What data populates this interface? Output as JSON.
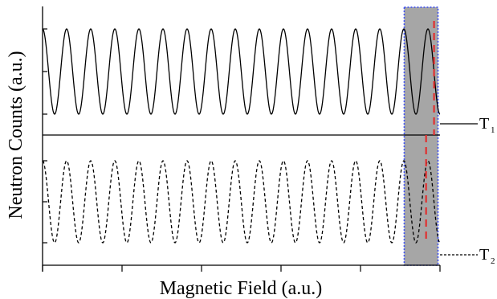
{
  "chart_data": {
    "type": "line",
    "xlabel": "Magnetic Field (a.u.)",
    "ylabel": "Neutron Counts (a.u.)",
    "panels": [
      {
        "label": "T",
        "label_sub": "1",
        "line_style": "solid",
        "color": "#000000",
        "oscillation": {
          "periods": 16.5,
          "phase": 0.0,
          "x_range": [
            0,
            1
          ],
          "y_range": [
            -1,
            1
          ],
          "end_at": "valley"
        }
      },
      {
        "label": "T",
        "label_sub": "2",
        "line_style": "dashed",
        "color": "#000000",
        "oscillation": {
          "periods": 16.5,
          "phase": 0.0,
          "x_range": [
            0,
            1
          ],
          "y_range": [
            -1,
            1
          ],
          "end_at": "peak"
        }
      }
    ],
    "highlight_region": {
      "x_range": [
        0.91,
        0.995
      ],
      "fill": "#a6a6a6",
      "border": "#3a4df0",
      "border_style": "dotted"
    },
    "marker_lines": [
      {
        "panel": 0,
        "x": 0.985,
        "color": "#e03030",
        "style": "dashed"
      },
      {
        "panel": 1,
        "x": 0.965,
        "color": "#e03030",
        "style": "dashed"
      }
    ],
    "grid": false,
    "x_ticks_count": 5,
    "y_ticks_per_panel": 3
  }
}
